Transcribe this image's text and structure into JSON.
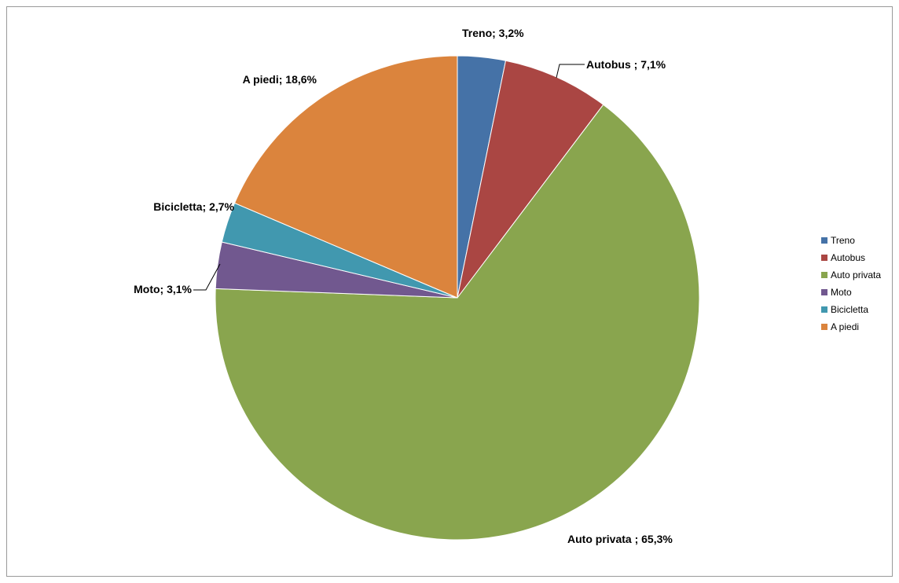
{
  "chart_data": {
    "type": "pie",
    "categories": [
      "Treno",
      "Autobus",
      "Auto privata",
      "Moto",
      "Bicicletta",
      "A piedi"
    ],
    "values": [
      3.2,
      7.1,
      65.3,
      3.1,
      2.7,
      18.6
    ],
    "data_labels": [
      "Treno; 3,2%",
      "Autobus ; 7,1%",
      "Auto privata ; 65,3%",
      "Moto; 3,1%",
      "Bicicletta; 2,7%",
      "A piedi; 18,6%"
    ],
    "colors": [
      "#4572a7",
      "#aa4643",
      "#89a54e",
      "#71588f",
      "#4198af",
      "#db843d"
    ],
    "legend": {
      "position": "right",
      "entries": [
        "Treno",
        "Autobus",
        "Auto privata",
        "Moto",
        "Bicicletta",
        "A piedi"
      ]
    },
    "start_angle": "12 o'clock",
    "direction": "clockwise"
  }
}
